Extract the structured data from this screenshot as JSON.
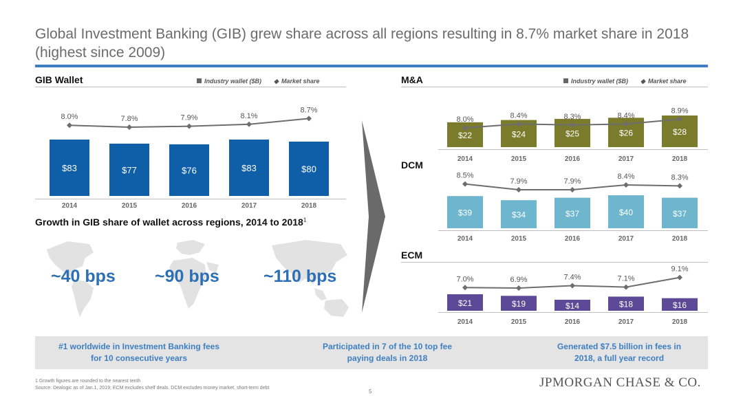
{
  "title": "Global Investment Banking (GIB) grew share across all regions resulting in 8.7% market share in 2018 (highest since 2009)",
  "legend": {
    "wallet": "Industry wallet ($B)",
    "share": "Market share"
  },
  "colors": {
    "gib": "#0f5ea8",
    "ma": "#7a7c2c",
    "dcm": "#6eb6cd",
    "ecm": "#5c4a97",
    "line": "#6d6d6d",
    "accent": "#2c6fb4"
  },
  "sections": {
    "gib": "GIB Wallet",
    "ma": "M&A",
    "dcm": "DCM",
    "ecm": "ECM",
    "growth": "Growth in GIB share of wallet across regions, 2014 to 2018",
    "growth_sup": "1"
  },
  "chart_data": [
    {
      "id": "gib",
      "type": "bar",
      "title": "GIB Wallet",
      "categories": [
        "2014",
        "2015",
        "2016",
        "2017",
        "2018"
      ],
      "series": [
        {
          "name": "Industry wallet ($B)",
          "values": [
            83,
            77,
            76,
            83,
            80
          ],
          "labels": [
            "$83",
            "$77",
            "$76",
            "$83",
            "$80"
          ]
        },
        {
          "name": "Market share",
          "values": [
            8.0,
            7.8,
            7.9,
            8.1,
            8.7
          ],
          "labels": [
            "8.0%",
            "7.8%",
            "7.9%",
            "8.1%",
            "8.7%"
          ]
        }
      ]
    },
    {
      "id": "ma",
      "type": "bar",
      "title": "M&A",
      "categories": [
        "2014",
        "2015",
        "2016",
        "2017",
        "2018"
      ],
      "series": [
        {
          "name": "Industry wallet ($B)",
          "values": [
            22,
            24,
            25,
            26,
            28
          ],
          "labels": [
            "$22",
            "$24",
            "$25",
            "$26",
            "$28"
          ]
        },
        {
          "name": "Market share",
          "values": [
            8.0,
            8.4,
            8.3,
            8.4,
            8.9
          ],
          "labels": [
            "8.0%",
            "8.4%",
            "8.3%",
            "8.4%",
            "8.9%"
          ]
        }
      ]
    },
    {
      "id": "dcm",
      "type": "bar",
      "title": "DCM",
      "categories": [
        "2014",
        "2015",
        "2016",
        "2017",
        "2018"
      ],
      "series": [
        {
          "name": "Industry wallet ($B)",
          "values": [
            39,
            34,
            37,
            40,
            37
          ],
          "labels": [
            "$39",
            "$34",
            "$37",
            "$40",
            "$37"
          ]
        },
        {
          "name": "Market share",
          "values": [
            8.5,
            7.9,
            7.9,
            8.4,
            8.3
          ],
          "labels": [
            "8.5%",
            "7.9%",
            "7.9%",
            "8.4%",
            "8.3%"
          ]
        }
      ]
    },
    {
      "id": "ecm",
      "type": "bar",
      "title": "ECM",
      "categories": [
        "2014",
        "2015",
        "2016",
        "2017",
        "2018"
      ],
      "series": [
        {
          "name": "Industry wallet ($B)",
          "values": [
            21,
            19,
            14,
            18,
            16
          ],
          "labels": [
            "$21",
            "$19",
            "$14",
            "$18",
            "$16"
          ]
        },
        {
          "name": "Market share",
          "values": [
            7.0,
            6.9,
            7.4,
            7.1,
            9.1
          ],
          "labels": [
            "7.0%",
            "6.9%",
            "7.4%",
            "7.1%",
            "9.1%"
          ]
        }
      ]
    }
  ],
  "regions": [
    {
      "name": "Americas",
      "growth": "~40 bps"
    },
    {
      "name": "EMEA",
      "growth": "~90 bps"
    },
    {
      "name": "APAC",
      "growth": "~110 bps"
    }
  ],
  "highlights": [
    "#1 worldwide in Investment Banking fees for 10 consecutive years",
    "Participated in 7 of the 10 top fee paying deals in 2018",
    "Generated $7.5 billion in fees in 2018, a full year record"
  ],
  "footnote1": "1 Growth figures are rounded to the nearest tenth",
  "source": "Source: Dealogic as of Jan.1, 2019; ECM excludes shelf deals. DCM excludes money market, short-term debt",
  "page": "5",
  "logo": "JPMORGAN CHASE & CO."
}
